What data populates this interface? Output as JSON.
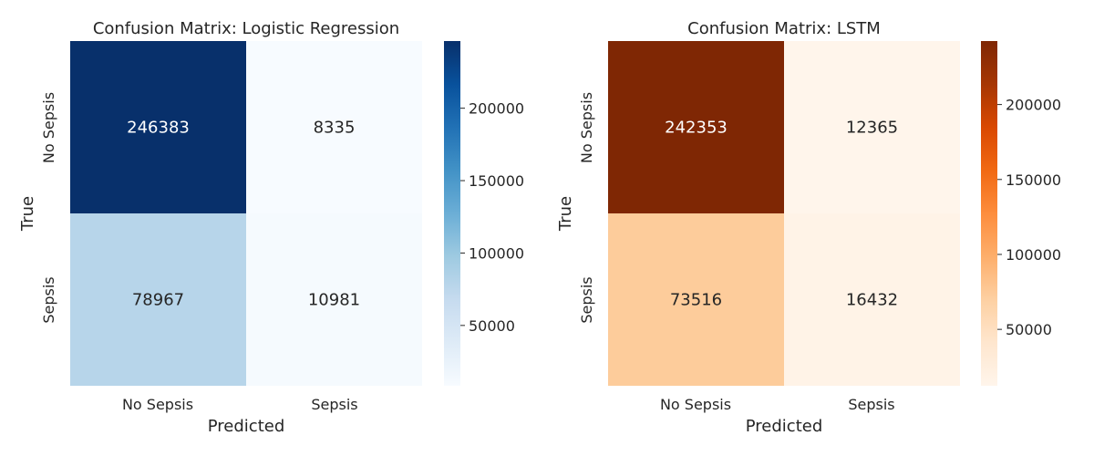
{
  "chart_data": [
    {
      "type": "heatmap",
      "title": "Confusion Matrix: Logistic Regression",
      "xlabel": "Predicted",
      "ylabel": "True",
      "x_categories": [
        "No Sepsis",
        "Sepsis"
      ],
      "y_categories": [
        "No Sepsis",
        "Sepsis"
      ],
      "values": [
        [
          246383,
          8335
        ],
        [
          78967,
          10981
        ]
      ],
      "colormap": "Blues",
      "colorbar": {
        "ticks": [
          50000,
          100000,
          150000,
          200000
        ],
        "tick_labels": [
          "50000",
          "100000",
          "150000",
          "200000"
        ],
        "range": [
          8335,
          246383
        ]
      },
      "colors": {
        "low": "#f7fbff",
        "high": "#08306b"
      }
    },
    {
      "type": "heatmap",
      "title": "Confusion Matrix: LSTM",
      "xlabel": "Predicted",
      "ylabel": "True",
      "x_categories": [
        "No Sepsis",
        "Sepsis"
      ],
      "y_categories": [
        "No Sepsis",
        "Sepsis"
      ],
      "values": [
        [
          242353,
          12365
        ],
        [
          73516,
          16432
        ]
      ],
      "colormap": "Oranges",
      "colorbar": {
        "ticks": [
          50000,
          100000,
          150000,
          200000
        ],
        "tick_labels": [
          "50000",
          "100000",
          "150000",
          "200000"
        ],
        "range": [
          12365,
          242353
        ]
      },
      "colors": {
        "low": "#fff5eb",
        "high": "#7f2704"
      }
    }
  ]
}
